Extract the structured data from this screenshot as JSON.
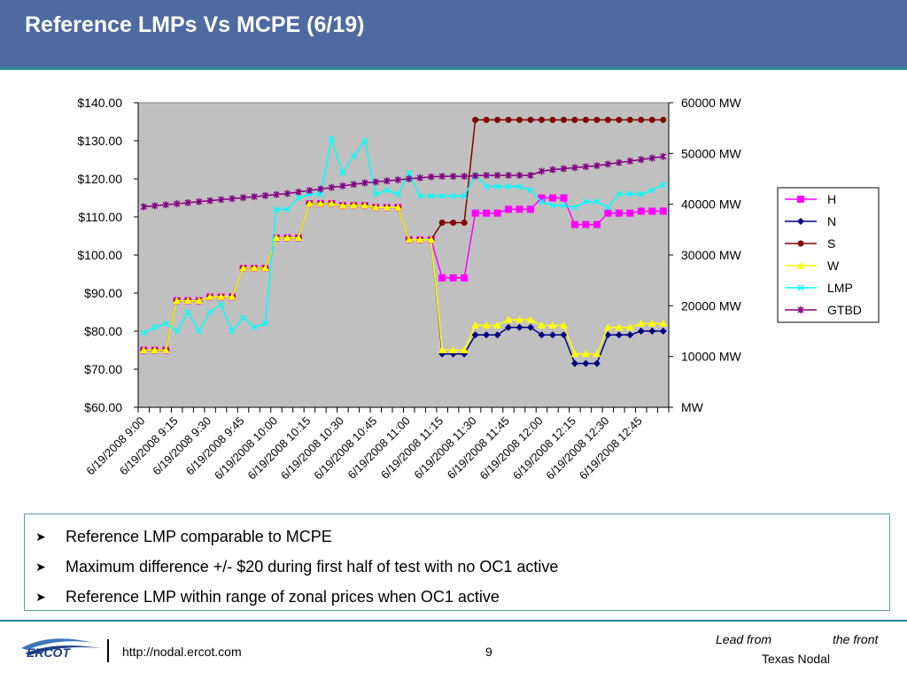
{
  "slide": {
    "title": "Reference LMPs Vs MCPE (6/19)",
    "bullets": [
      "Reference LMP comparable to MCPE",
      "Maximum difference +/- $20 during first half of test with no OC1 active",
      "Reference LMP within range of zonal prices when OC1 active"
    ],
    "footer": {
      "logo_text": "ERCOT",
      "url": "http://nodal.ercot.com",
      "page": "9",
      "tagline_left": "Lead from",
      "tagline_right": "the front",
      "tagline_sub": "Texas Nodal"
    }
  },
  "chart_data": {
    "type": "line",
    "x_labels": [
      "6/19/2008 9:00",
      "6/19/2008 9:15",
      "6/19/2008 9:30",
      "6/19/2008 9:45",
      "6/19/2008 10:00",
      "6/19/2008 10:15",
      "6/19/2008 10:30",
      "6/19/2008 10:45",
      "6/19/2008 11:00",
      "6/19/2008 11:15",
      "6/19/2008 11:30",
      "6/19/2008 11:45",
      "6/19/2008 12:00",
      "6/19/2008 12:15",
      "6/19/2008 12:30",
      "6/19/2008 12:45"
    ],
    "y_left": {
      "min": 60,
      "max": 140,
      "step": 10,
      "ticks": [
        "$60.00",
        "$70.00",
        "$80.00",
        "$90.00",
        "$100.00",
        "$110.00",
        "$120.00",
        "$130.00",
        "$140.00"
      ]
    },
    "y_right": {
      "min": 0,
      "max": 60000,
      "step": 10000,
      "ticks": [
        "MW",
        "10000 MW",
        "20000 MW",
        "30000 MW",
        "40000 MW",
        "50000 MW",
        "60000 MW"
      ]
    },
    "legend_position": "right",
    "series": [
      {
        "name": "H",
        "color": "#ff00ff",
        "marker": "square",
        "axis": "left",
        "values": [
          75,
          75,
          75,
          88,
          88,
          88,
          89,
          89,
          89,
          96.5,
          96.5,
          96.5,
          104.5,
          104.5,
          104.5,
          113.5,
          113.5,
          113.5,
          113,
          113,
          113,
          112.5,
          112.5,
          112.5,
          104,
          104,
          104,
          94,
          94,
          94,
          111,
          111,
          111,
          112,
          112,
          112,
          115,
          115,
          115,
          108,
          108,
          108,
          111,
          111,
          111,
          111.5,
          111.5,
          111.5
        ]
      },
      {
        "name": "N",
        "color": "#000080",
        "marker": "diamond",
        "axis": "left",
        "values": [
          75,
          75,
          75,
          88,
          88,
          88,
          89,
          89,
          89,
          96.5,
          96.5,
          96.5,
          104.5,
          104.5,
          104.5,
          113.5,
          113.5,
          113.5,
          113,
          113,
          113,
          112.5,
          112.5,
          112.5,
          104,
          104,
          104,
          74,
          74,
          74,
          79,
          79,
          79,
          81,
          81,
          81,
          79,
          79,
          79,
          71.5,
          71.5,
          71.5,
          79,
          79,
          79,
          80,
          80,
          80
        ]
      },
      {
        "name": "S",
        "color": "#800000",
        "marker": "circle",
        "axis": "left",
        "values": [
          75,
          75,
          75,
          88,
          88,
          88,
          89,
          89,
          89,
          96.5,
          96.5,
          96.5,
          104.5,
          104.5,
          104.5,
          113.5,
          113.5,
          113.5,
          113,
          113,
          113,
          112.5,
          112.5,
          112.5,
          104,
          104,
          104,
          108.5,
          108.5,
          108.5,
          135.5,
          135.5,
          135.5,
          135.5,
          135.5,
          135.5,
          135.5,
          135.5,
          135.5,
          135.5,
          135.5,
          135.5,
          135.5,
          135.5,
          135.5,
          135.5,
          135.5,
          135.5
        ]
      },
      {
        "name": "W",
        "color": "#ffff00",
        "marker": "triangle",
        "axis": "left",
        "values": [
          75,
          75,
          75,
          88,
          88,
          88,
          89,
          89,
          89,
          96.5,
          96.5,
          96.5,
          104.5,
          104.5,
          104.5,
          113.5,
          113.5,
          113.5,
          113,
          113,
          113,
          112.5,
          112.5,
          112.5,
          104,
          104,
          104,
          75,
          75,
          75,
          81.5,
          81.5,
          81.5,
          83,
          83,
          83,
          81.5,
          81.5,
          81.5,
          74,
          74,
          74,
          81,
          81,
          81,
          82,
          82,
          82
        ]
      },
      {
        "name": "LMP",
        "color": "#00ffff",
        "marker": "x",
        "axis": "left",
        "values": [
          79.5,
          81,
          82,
          80,
          85,
          80,
          85,
          87,
          80,
          83.5,
          81,
          82,
          112,
          112,
          115,
          116,
          116,
          130.5,
          121.5,
          126,
          130,
          116,
          117,
          116,
          121.5,
          115.5,
          115.5,
          115.5,
          115.5,
          115.5,
          121,
          118,
          118,
          118,
          118,
          117,
          114,
          113,
          113,
          112.5,
          114,
          114,
          112.5,
          116,
          116,
          116,
          117,
          118.5
        ]
      },
      {
        "name": "GTBD",
        "color": "#800080",
        "marker": "star",
        "axis": "right",
        "values": [
          39500,
          39700,
          39900,
          40100,
          40300,
          40500,
          40700,
          40900,
          41100,
          41300,
          41500,
          41700,
          41900,
          42100,
          42400,
          42700,
          43000,
          43300,
          43600,
          43900,
          44200,
          44400,
          44600,
          44800,
          45000,
          45200,
          45400,
          45500,
          45500,
          45500,
          45600,
          45700,
          45700,
          45700,
          45700,
          45700,
          46500,
          46800,
          47000,
          47200,
          47400,
          47600,
          47900,
          48200,
          48500,
          48800,
          49100,
          49400
        ]
      }
    ]
  }
}
